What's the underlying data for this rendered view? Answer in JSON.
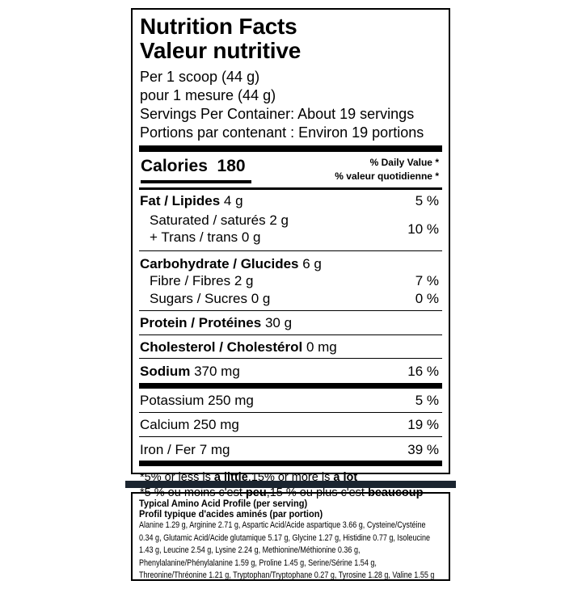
{
  "label": {
    "title_en": "Nutrition Facts",
    "title_fr": "Valeur nutritive",
    "serving_en": "Per 1 scoop (44 g)",
    "serving_fr": "pour 1 mesure (44 g)",
    "servings_en": "Servings Per Container: About 19 servings",
    "servings_fr": "Portions par contenant : Environ 19 portions",
    "calories_label": "Calories",
    "calories_value": "180",
    "dv_header_en": "% Daily Value *",
    "dv_header_fr": "% valeur quotidienne *",
    "rows": [
      {
        "name": "Fat / Lipides",
        "amount": "4 g",
        "pct": "5 %"
      },
      {
        "name": "Saturated / saturés",
        "amount": "2 g",
        "pct": "10 %"
      },
      {
        "name": "+ Trans / trans",
        "amount": "0 g"
      },
      {
        "name": "Carbohydrate / Glucides",
        "amount": "6 g"
      },
      {
        "name": "Fibre / Fibres",
        "amount": "2 g",
        "pct": "7 %"
      },
      {
        "name": "Sugars / Sucres",
        "amount": "0 g",
        "pct": "0 %"
      },
      {
        "name": "Protein / Protéines",
        "amount": "30 g"
      },
      {
        "name": "Cholesterol / Cholestérol",
        "amount": "0 mg"
      },
      {
        "name": "Sodium",
        "amount": "370 mg",
        "pct": "16 %"
      },
      {
        "name": "Potassium",
        "amount": "250 mg",
        "pct": "5 %"
      },
      {
        "name": "Calcium",
        "amount": "250 mg",
        "pct": "19 %"
      },
      {
        "name": "Iron / Fer",
        "amount": "7 mg",
        "pct": "39 %"
      }
    ],
    "footnote_en": {
      "a": "*5% or less is ",
      "b": "a little",
      "c": ",15% or more is ",
      "d": "a lot"
    },
    "footnote_fr": {
      "a": "*5 % ou moins c'est ",
      "b": "peu",
      "c": ",15 % ou plus c'est ",
      "d": "beaucoup"
    }
  },
  "amino": {
    "title_en": "Typical Amino Acid Profile (per serving)",
    "title_fr": "Profil typique d'acides aminés (par portion)",
    "lines": [
      "Alanine 1.29 g, Arginine 2.71 g, Aspartic Acid/Acide aspartique 3.66 g, Cysteine/Cystéine",
      "0.34 g, Glutamic Acid/Acide glutamique 5.17 g, Glycine 1.27 g, Histidine 0.77 g, Isoleucine",
      "1.43 g, Leucine 2.54 g, Lysine 2.24 g, Methionine/Méthionine 0.36 g,",
      "Phenylalanine/Phénylalanine 1.59 g, Proline 1.45 g, Serine/Sérine 1.54 g,",
      "Threonine/Thréonine 1.21 g, Tryptophan/Tryptophane 0.27 g, Tyrosine 1.28 g, Valine 1.55 g"
    ]
  },
  "colors": {
    "separator_bar": "#1b2530"
  }
}
